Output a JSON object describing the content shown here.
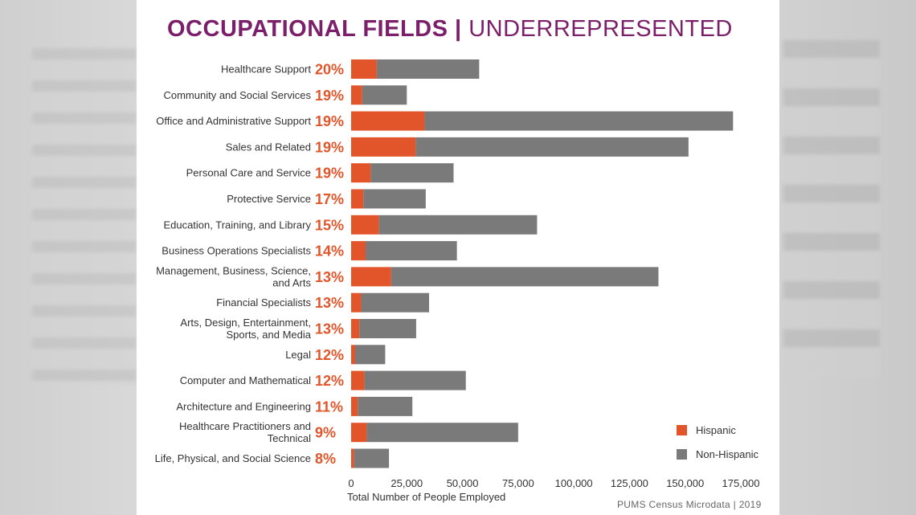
{
  "title": {
    "bold": "OCCUPATIONAL FIELDS",
    "separator": "|",
    "light": "UNDERREPRESENTED"
  },
  "source": "PUMS Census Microdata | 2019",
  "colors": {
    "hispanic": "#e2552a",
    "non_hispanic": "#7a7a7a",
    "title": "#7b1f6a",
    "pct": "#e2552a"
  },
  "legend": [
    {
      "label": "Hispanic",
      "color": "#e2552a"
    },
    {
      "label": "Non-Hispanic",
      "color": "#7a7a7a"
    }
  ],
  "chart_data": {
    "type": "bar",
    "orientation": "horizontal",
    "stacked": true,
    "title": "OCCUPATIONAL FIELDS | UNDERREPRESENTED",
    "xlabel": "Total Number of People Employed",
    "ylabel": "",
    "xlim": [
      0,
      175000
    ],
    "x_ticks": [
      "0",
      "25,000",
      "50,000",
      "75,000",
      "100,000",
      "125,000",
      "150,000",
      "175,000"
    ],
    "x_tick_values": [
      0,
      25000,
      50000,
      75000,
      100000,
      125000,
      150000,
      175000
    ],
    "legend_position": "bottom-right",
    "categories": [
      [
        "Healthcare Support"
      ],
      [
        "Community and Social Services"
      ],
      [
        "Office and Administrative Support"
      ],
      [
        "Sales and Related"
      ],
      [
        "Personal Care and Service"
      ],
      [
        "Protective Service"
      ],
      [
        "Education, Training, and Library"
      ],
      [
        "Business Operations Specialists"
      ],
      [
        "Management, Business, Science,",
        "and Arts"
      ],
      [
        "Financial Specialists"
      ],
      [
        "Arts, Design, Entertainment,",
        "Sports, and Media"
      ],
      [
        "Legal"
      ],
      [
        "Computer and Mathematical"
      ],
      [
        "Architecture and Engineering"
      ],
      [
        "Healthcare Practitioners and",
        "Technical"
      ],
      [
        "Life, Physical, and Social Science"
      ]
    ],
    "percent_labels": [
      "20%",
      "19%",
      "19%",
      "19%",
      "19%",
      "17%",
      "15%",
      "14%",
      "13%",
      "13%",
      "13%",
      "12%",
      "12%",
      "11%",
      "9%",
      "8%"
    ],
    "series": [
      {
        "name": "Hispanic",
        "values": [
          11500,
          5000,
          33000,
          29000,
          8800,
          5500,
          12500,
          6500,
          18000,
          4500,
          3700,
          1800,
          6000,
          3000,
          7000,
          1300
        ]
      },
      {
        "name": "Non-Hispanic",
        "values": [
          46000,
          20000,
          138500,
          122500,
          37200,
          28000,
          71000,
          41000,
          120000,
          30500,
          25500,
          13500,
          45500,
          24500,
          68000,
          15700
        ]
      }
    ]
  }
}
